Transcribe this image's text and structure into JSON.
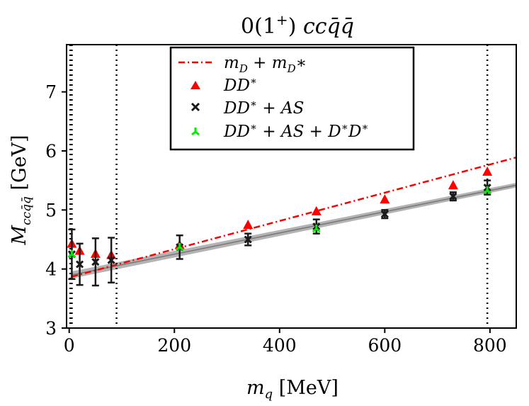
{
  "chart_data": {
    "type": "scatter",
    "title": "0(1⁺) cc q̄q̄",
    "xlabel": "m_q [MeV]",
    "ylabel": "M_{ccq̄q̄} [GeV]",
    "xlim": [
      -5,
      850
    ],
    "ylim": [
      3,
      7.8
    ],
    "xticks": [
      0,
      200,
      400,
      600,
      800
    ],
    "yticks": [
      3,
      4,
      5,
      6,
      7
    ],
    "vlines": [
      2,
      5,
      90,
      795
    ],
    "legend_position": "top-center",
    "legend": [
      {
        "label": "m_D + m_D*",
        "marker": "dashdot-line",
        "color": "#ff0000"
      },
      {
        "label": "DD*",
        "marker": "triangle",
        "color": "#ff0000"
      },
      {
        "label": "DD* + AS",
        "marker": "x",
        "color": "#1a1a1a"
      },
      {
        "label": "DD* + AS + D*D*",
        "marker": "tri",
        "color": "#00ee00"
      }
    ],
    "threshold_line": {
      "name": "m_D + m_D*",
      "x": [
        5,
        850
      ],
      "y": [
        3.87,
        5.89
      ]
    },
    "fit_band": {
      "name": "linear fit",
      "x": [
        5,
        850
      ],
      "y_center": [
        3.9,
        5.42
      ],
      "y_half_width": [
        0.06,
        0.04
      ]
    },
    "series": [
      {
        "name": "DD*",
        "x": [
          5,
          20,
          50,
          80,
          210,
          340,
          470,
          600,
          730,
          795
        ],
        "y": [
          4.42,
          4.3,
          4.25,
          4.23,
          4.4,
          4.74,
          4.97,
          5.17,
          5.41,
          5.64
        ]
      },
      {
        "name": "DD* + AS",
        "x": [
          5,
          20,
          50,
          80,
          210,
          340,
          470,
          600,
          730,
          795
        ],
        "y": [
          4.25,
          4.08,
          4.12,
          4.15,
          4.37,
          4.5,
          4.72,
          4.93,
          5.23,
          5.38
        ],
        "yerr": [
          0.42,
          0.35,
          0.4,
          0.38,
          0.2,
          0.1,
          0.12,
          0.07,
          0.07,
          0.12
        ]
      },
      {
        "name": "DD* + AS + D*D*",
        "x": [
          5,
          210,
          470,
          795
        ],
        "y": [
          4.25,
          4.37,
          4.68,
          5.33
        ]
      }
    ]
  }
}
